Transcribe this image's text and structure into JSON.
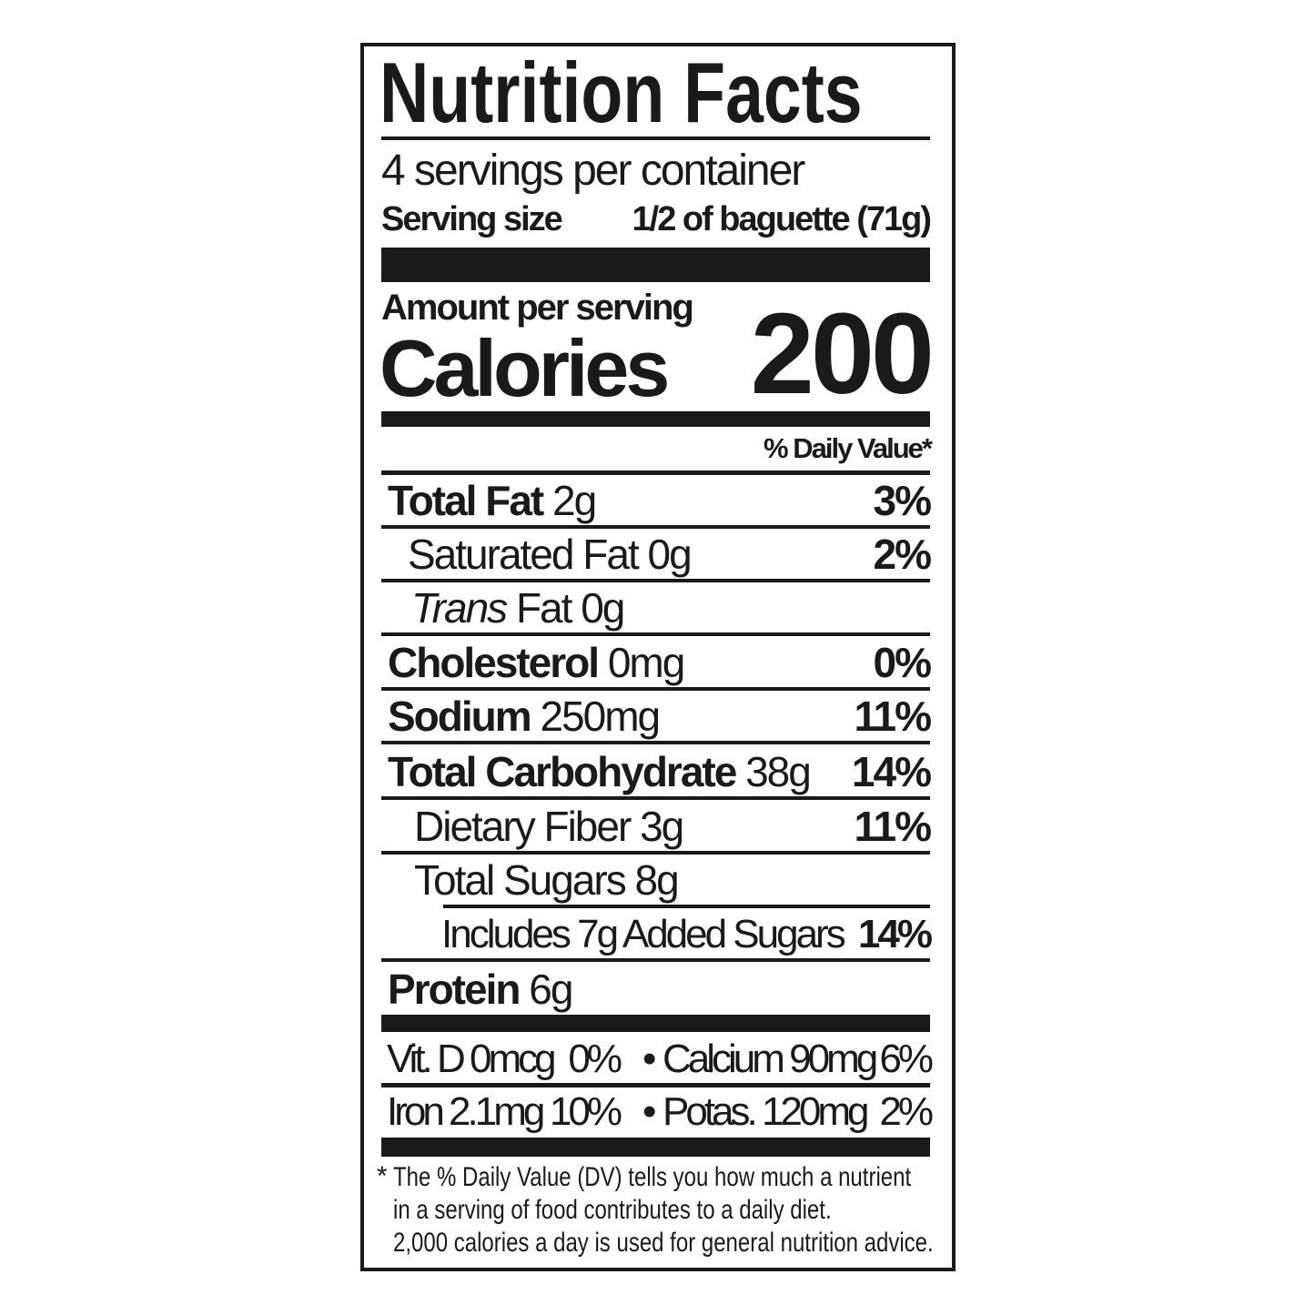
{
  "title": "Nutrition Facts",
  "servings_per_container": "4 servings per container",
  "serving_size": {
    "label": "Serving size",
    "value": "1/2 of baguette (71g)"
  },
  "amount_per_serving": "Amount per serving",
  "calories": {
    "label": "Calories",
    "value": "200"
  },
  "daily_value_header": "% Daily Value*",
  "nutrients": [
    {
      "name": "Total Fat",
      "amount": "2g",
      "dv": "3%"
    },
    {
      "name": "Saturated Fat",
      "amount": "0g",
      "dv": "2%"
    },
    {
      "name": "Trans",
      "name_rest": "Fat",
      "amount": "0g",
      "dv": ""
    },
    {
      "name": "Cholesterol",
      "amount": "0mg",
      "dv": "0%"
    },
    {
      "name": "Sodium",
      "amount": "250mg",
      "dv": "11%"
    },
    {
      "name": "Total Carbohydrate",
      "amount": "38g",
      "dv": "14%"
    },
    {
      "name": "Dietary Fiber",
      "amount": "3g",
      "dv": "11%"
    },
    {
      "name": "Total Sugars",
      "amount": "8g",
      "dv": ""
    },
    {
      "name": "Includes 7g Added Sugars",
      "amount": "",
      "dv": "14%"
    },
    {
      "name": "Protein",
      "amount": "6g",
      "dv": ""
    }
  ],
  "micronutrients": [
    {
      "name": "Vit. D 0mcg",
      "dv": "0%"
    },
    {
      "name": "Calcium 90mg",
      "dv": "6%"
    },
    {
      "name": "Iron 2.1mg",
      "dv": "10%"
    },
    {
      "name": "Potas. 120mg",
      "dv": "2%"
    }
  ],
  "bullet": "•",
  "footnote": {
    "asterisk": "*",
    "lines": [
      "The % Daily Value (DV) tells you how much a nutrient",
      "in a serving of food contributes to a daily diet.",
      "2,000 calories a day is used for general nutrition advice."
    ]
  }
}
